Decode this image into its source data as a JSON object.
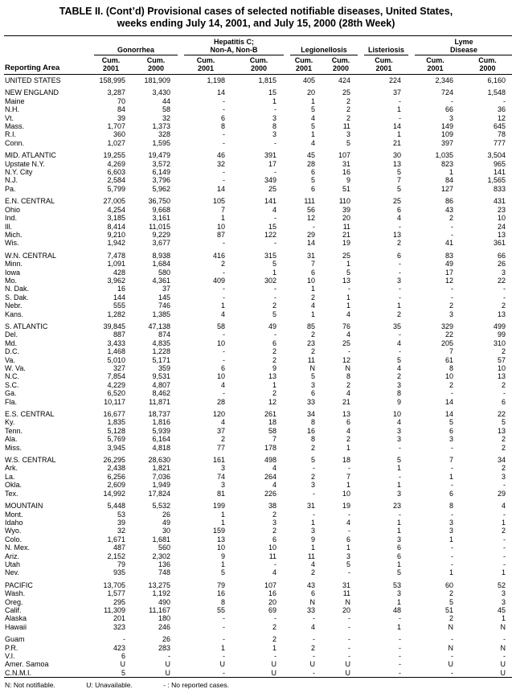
{
  "title": {
    "line1": "TABLE II. (Cont’d) Provisional cases of selected notifiable diseases, United States,",
    "line2": "weeks ending July 14, 2001, and July 15, 2000 (28th Week)"
  },
  "header": {
    "reporting_area": "Reporting Area",
    "groups": [
      {
        "label": "Gonorrhea"
      },
      {
        "label": "Hepatitis C;\nNon-A, Non-B"
      },
      {
        "label": "Legionellosis"
      },
      {
        "label": "Listeriosis"
      },
      {
        "label": "Lyme\nDisease"
      }
    ],
    "columns": [
      {
        "l1": "Cum.",
        "l2": "2001"
      },
      {
        "l1": "Cum.",
        "l2": "2000"
      },
      {
        "l1": "Cum.",
        "l2": "2001"
      },
      {
        "l1": "Cum.",
        "l2": "2000"
      },
      {
        "l1": "Cum.",
        "l2": "2001"
      },
      {
        "l1": "Cum.",
        "l2": "2000"
      },
      {
        "l1": "Cum.",
        "l2": "2001"
      },
      {
        "l1": "Cum.",
        "l2": "2001"
      },
      {
        "l1": "Cum.",
        "l2": "2000"
      }
    ]
  },
  "rows": [
    {
      "area": "UNITED STATES",
      "values": [
        "158,995",
        "181,909",
        "1,198",
        "1,815",
        "405",
        "424",
        "224",
        "2,346",
        "6,160"
      ]
    },
    {
      "spacer": true
    },
    {
      "area": "NEW ENGLAND",
      "values": [
        "3,287",
        "3,430",
        "14",
        "15",
        "20",
        "25",
        "37",
        "724",
        "1,548"
      ]
    },
    {
      "area": "Maine",
      "values": [
        "70",
        "44",
        "-",
        "1",
        "1",
        "2",
        "-",
        "-",
        "-"
      ]
    },
    {
      "area": "N.H.",
      "values": [
        "84",
        "58",
        "-",
        "-",
        "5",
        "2",
        "1",
        "66",
        "36"
      ]
    },
    {
      "area": "Vt.",
      "values": [
        "39",
        "32",
        "6",
        "3",
        "4",
        "2",
        "-",
        "3",
        "12"
      ]
    },
    {
      "area": "Mass.",
      "values": [
        "1,707",
        "1,373",
        "8",
        "8",
        "5",
        "11",
        "14",
        "149",
        "645"
      ]
    },
    {
      "area": "R.I.",
      "values": [
        "360",
        "328",
        "-",
        "3",
        "1",
        "3",
        "1",
        "109",
        "78"
      ]
    },
    {
      "area": "Conn.",
      "values": [
        "1,027",
        "1,595",
        "-",
        "-",
        "4",
        "5",
        "21",
        "397",
        "777"
      ]
    },
    {
      "spacer": true
    },
    {
      "area": "MID. ATLANTIC",
      "values": [
        "19,255",
        "19,479",
        "46",
        "391",
        "45",
        "107",
        "30",
        "1,035",
        "3,504"
      ]
    },
    {
      "area": "Upstate N.Y.",
      "values": [
        "4,269",
        "3,572",
        "32",
        "17",
        "28",
        "31",
        "13",
        "823",
        "965"
      ]
    },
    {
      "area": "N.Y. City",
      "values": [
        "6,603",
        "6,149",
        "-",
        "-",
        "6",
        "16",
        "5",
        "1",
        "141"
      ]
    },
    {
      "area": "N.J.",
      "values": [
        "2,584",
        "3,796",
        "-",
        "349",
        "5",
        "9",
        "7",
        "84",
        "1,565"
      ]
    },
    {
      "area": "Pa.",
      "values": [
        "5,799",
        "5,962",
        "14",
        "25",
        "6",
        "51",
        "5",
        "127",
        "833"
      ]
    },
    {
      "spacer": true
    },
    {
      "area": "E.N. CENTRAL",
      "values": [
        "27,005",
        "36,750",
        "105",
        "141",
        "111",
        "110",
        "25",
        "86",
        "431"
      ]
    },
    {
      "area": "Ohio",
      "values": [
        "4,254",
        "9,668",
        "7",
        "4",
        "56",
        "39",
        "6",
        "43",
        "23"
      ]
    },
    {
      "area": "Ind.",
      "values": [
        "3,185",
        "3,161",
        "1",
        "-",
        "12",
        "20",
        "4",
        "2",
        "10"
      ]
    },
    {
      "area": "Ill.",
      "values": [
        "8,414",
        "11,015",
        "10",
        "15",
        "-",
        "11",
        "-",
        "-",
        "24"
      ]
    },
    {
      "area": "Mich.",
      "values": [
        "9,210",
        "9,229",
        "87",
        "122",
        "29",
        "21",
        "13",
        "-",
        "13"
      ]
    },
    {
      "area": "Wis.",
      "values": [
        "1,942",
        "3,677",
        "-",
        "-",
        "14",
        "19",
        "2",
        "41",
        "361"
      ]
    },
    {
      "spacer": true
    },
    {
      "area": "W.N. CENTRAL",
      "values": [
        "7,478",
        "8,938",
        "416",
        "315",
        "31",
        "25",
        "6",
        "83",
        "66"
      ]
    },
    {
      "area": "Minn.",
      "values": [
        "1,091",
        "1,684",
        "2",
        "5",
        "7",
        "1",
        "-",
        "49",
        "26"
      ]
    },
    {
      "area": "Iowa",
      "values": [
        "428",
        "580",
        "-",
        "1",
        "6",
        "5",
        "-",
        "17",
        "3"
      ]
    },
    {
      "area": "Mo.",
      "values": [
        "3,962",
        "4,361",
        "409",
        "302",
        "10",
        "13",
        "3",
        "12",
        "22"
      ]
    },
    {
      "area": "N. Dak.",
      "values": [
        "16",
        "37",
        "-",
        "-",
        "1",
        "-",
        "-",
        "-",
        "-"
      ]
    },
    {
      "area": "S. Dak.",
      "values": [
        "144",
        "145",
        "-",
        "-",
        "2",
        "1",
        "-",
        "-",
        "-"
      ]
    },
    {
      "area": "Nebr.",
      "values": [
        "555",
        "746",
        "1",
        "2",
        "4",
        "1",
        "1",
        "2",
        "2"
      ]
    },
    {
      "area": "Kans.",
      "values": [
        "1,282",
        "1,385",
        "4",
        "5",
        "1",
        "4",
        "2",
        "3",
        "13"
      ]
    },
    {
      "spacer": true
    },
    {
      "area": "S. ATLANTIC",
      "values": [
        "39,845",
        "47,138",
        "58",
        "49",
        "85",
        "76",
        "35",
        "329",
        "499"
      ]
    },
    {
      "area": "Del.",
      "values": [
        "887",
        "874",
        "-",
        "-",
        "2",
        "4",
        "-",
        "22",
        "99"
      ]
    },
    {
      "area": "Md.",
      "values": [
        "3,433",
        "4,835",
        "10",
        "6",
        "23",
        "25",
        "4",
        "205",
        "310"
      ]
    },
    {
      "area": "D.C.",
      "values": [
        "1,468",
        "1,228",
        "-",
        "2",
        "2",
        "-",
        "-",
        "7",
        "2"
      ]
    },
    {
      "area": "Va.",
      "values": [
        "5,010",
        "5,171",
        "-",
        "2",
        "11",
        "12",
        "5",
        "61",
        "57"
      ]
    },
    {
      "area": "W. Va.",
      "values": [
        "327",
        "359",
        "6",
        "9",
        "N",
        "N",
        "4",
        "8",
        "10"
      ]
    },
    {
      "area": "N.C.",
      "values": [
        "7,854",
        "9,531",
        "10",
        "13",
        "5",
        "8",
        "2",
        "10",
        "13"
      ]
    },
    {
      "area": "S.C.",
      "values": [
        "4,229",
        "4,807",
        "4",
        "1",
        "3",
        "2",
        "3",
        "2",
        "2"
      ]
    },
    {
      "area": "Ga.",
      "values": [
        "6,520",
        "8,462",
        "-",
        "2",
        "6",
        "4",
        "8",
        "-",
        "-"
      ]
    },
    {
      "area": "Fla.",
      "values": [
        "10,117",
        "11,871",
        "28",
        "12",
        "33",
        "21",
        "9",
        "14",
        "6"
      ]
    },
    {
      "spacer": true
    },
    {
      "area": "E.S. CENTRAL",
      "values": [
        "16,677",
        "18,737",
        "120",
        "261",
        "34",
        "13",
        "10",
        "14",
        "22"
      ]
    },
    {
      "area": "Ky.",
      "values": [
        "1,835",
        "1,816",
        "4",
        "18",
        "8",
        "6",
        "4",
        "5",
        "5"
      ]
    },
    {
      "area": "Tenn.",
      "values": [
        "5,128",
        "5,939",
        "37",
        "58",
        "16",
        "4",
        "3",
        "6",
        "13"
      ]
    },
    {
      "area": "Ala.",
      "values": [
        "5,769",
        "6,164",
        "2",
        "7",
        "8",
        "2",
        "3",
        "3",
        "2"
      ]
    },
    {
      "area": "Miss.",
      "values": [
        "3,945",
        "4,818",
        "77",
        "178",
        "2",
        "1",
        "-",
        "-",
        "2"
      ]
    },
    {
      "spacer": true
    },
    {
      "area": "W.S. CENTRAL",
      "values": [
        "26,295",
        "28,630",
        "161",
        "498",
        "5",
        "18",
        "5",
        "7",
        "34"
      ]
    },
    {
      "area": "Ark.",
      "values": [
        "2,438",
        "1,821",
        "3",
        "4",
        "-",
        "-",
        "1",
        "-",
        "2"
      ]
    },
    {
      "area": "La.",
      "values": [
        "6,256",
        "7,036",
        "74",
        "264",
        "2",
        "7",
        "-",
        "1",
        "3"
      ]
    },
    {
      "area": "Okla.",
      "values": [
        "2,609",
        "1,949",
        "3",
        "4",
        "3",
        "1",
        "1",
        "-",
        "-"
      ]
    },
    {
      "area": "Tex.",
      "values": [
        "14,992",
        "17,824",
        "81",
        "226",
        "-",
        "10",
        "3",
        "6",
        "29"
      ]
    },
    {
      "spacer": true
    },
    {
      "area": "MOUNTAIN",
      "values": [
        "5,448",
        "5,532",
        "199",
        "38",
        "31",
        "19",
        "23",
        "8",
        "4"
      ]
    },
    {
      "area": "Mont.",
      "values": [
        "53",
        "26",
        "1",
        "2",
        "-",
        "-",
        "-",
        "-",
        "-"
      ]
    },
    {
      "area": "Idaho",
      "values": [
        "39",
        "49",
        "1",
        "3",
        "1",
        "4",
        "1",
        "3",
        "1"
      ]
    },
    {
      "area": "Wyo.",
      "values": [
        "32",
        "30",
        "159",
        "2",
        "3",
        "-",
        "1",
        "3",
        "2"
      ]
    },
    {
      "area": "Colo.",
      "values": [
        "1,671",
        "1,681",
        "13",
        "6",
        "9",
        "6",
        "3",
        "1",
        "-"
      ]
    },
    {
      "area": "N. Mex.",
      "values": [
        "487",
        "560",
        "10",
        "10",
        "1",
        "1",
        "6",
        "-",
        "-"
      ]
    },
    {
      "area": "Ariz.",
      "values": [
        "2,152",
        "2,302",
        "9",
        "11",
        "11",
        "3",
        "6",
        "-",
        "-"
      ]
    },
    {
      "area": "Utah",
      "values": [
        "79",
        "136",
        "1",
        "-",
        "4",
        "5",
        "1",
        "-",
        "-"
      ]
    },
    {
      "area": "Nev.",
      "values": [
        "935",
        "748",
        "5",
        "4",
        "2",
        "-",
        "5",
        "1",
        "1"
      ]
    },
    {
      "spacer": true
    },
    {
      "area": "PACIFIC",
      "values": [
        "13,705",
        "13,275",
        "79",
        "107",
        "43",
        "31",
        "53",
        "60",
        "52"
      ]
    },
    {
      "area": "Wash.",
      "values": [
        "1,577",
        "1,192",
        "16",
        "16",
        "6",
        "11",
        "3",
        "2",
        "3"
      ]
    },
    {
      "area": "Oreg.",
      "values": [
        "295",
        "490",
        "8",
        "20",
        "N",
        "N",
        "1",
        "5",
        "3"
      ]
    },
    {
      "area": "Calif.",
      "values": [
        "11,309",
        "11,167",
        "55",
        "69",
        "33",
        "20",
        "48",
        "51",
        "45"
      ]
    },
    {
      "area": "Alaska",
      "values": [
        "201",
        "180",
        "-",
        "-",
        "-",
        "-",
        "-",
        "2",
        "1"
      ]
    },
    {
      "area": "Hawaii",
      "values": [
        "323",
        "246",
        "-",
        "2",
        "4",
        "-",
        "1",
        "N",
        "N"
      ]
    },
    {
      "spacer": true
    },
    {
      "area": "Guam",
      "values": [
        "-",
        "26",
        "-",
        "2",
        "-",
        "-",
        "-",
        "-",
        "-"
      ]
    },
    {
      "area": "P.R.",
      "values": [
        "423",
        "283",
        "1",
        "1",
        "2",
        "-",
        "-",
        "N",
        "N"
      ]
    },
    {
      "area": "V.I.",
      "values": [
        "6",
        "-",
        "-",
        "-",
        "-",
        "-",
        "-",
        "-",
        "-"
      ]
    },
    {
      "area": "Amer. Samoa",
      "values": [
        "U",
        "U",
        "U",
        "U",
        "U",
        "U",
        "-",
        "U",
        "U"
      ]
    },
    {
      "area": "C.N.M.I.",
      "values": [
        "5",
        "U",
        "-",
        "U",
        "-",
        "U",
        "-",
        "-",
        "U"
      ]
    }
  ],
  "footnotes": [
    "N: Not notifiable.",
    "U: Unavailable.",
    "- : No reported cases."
  ]
}
